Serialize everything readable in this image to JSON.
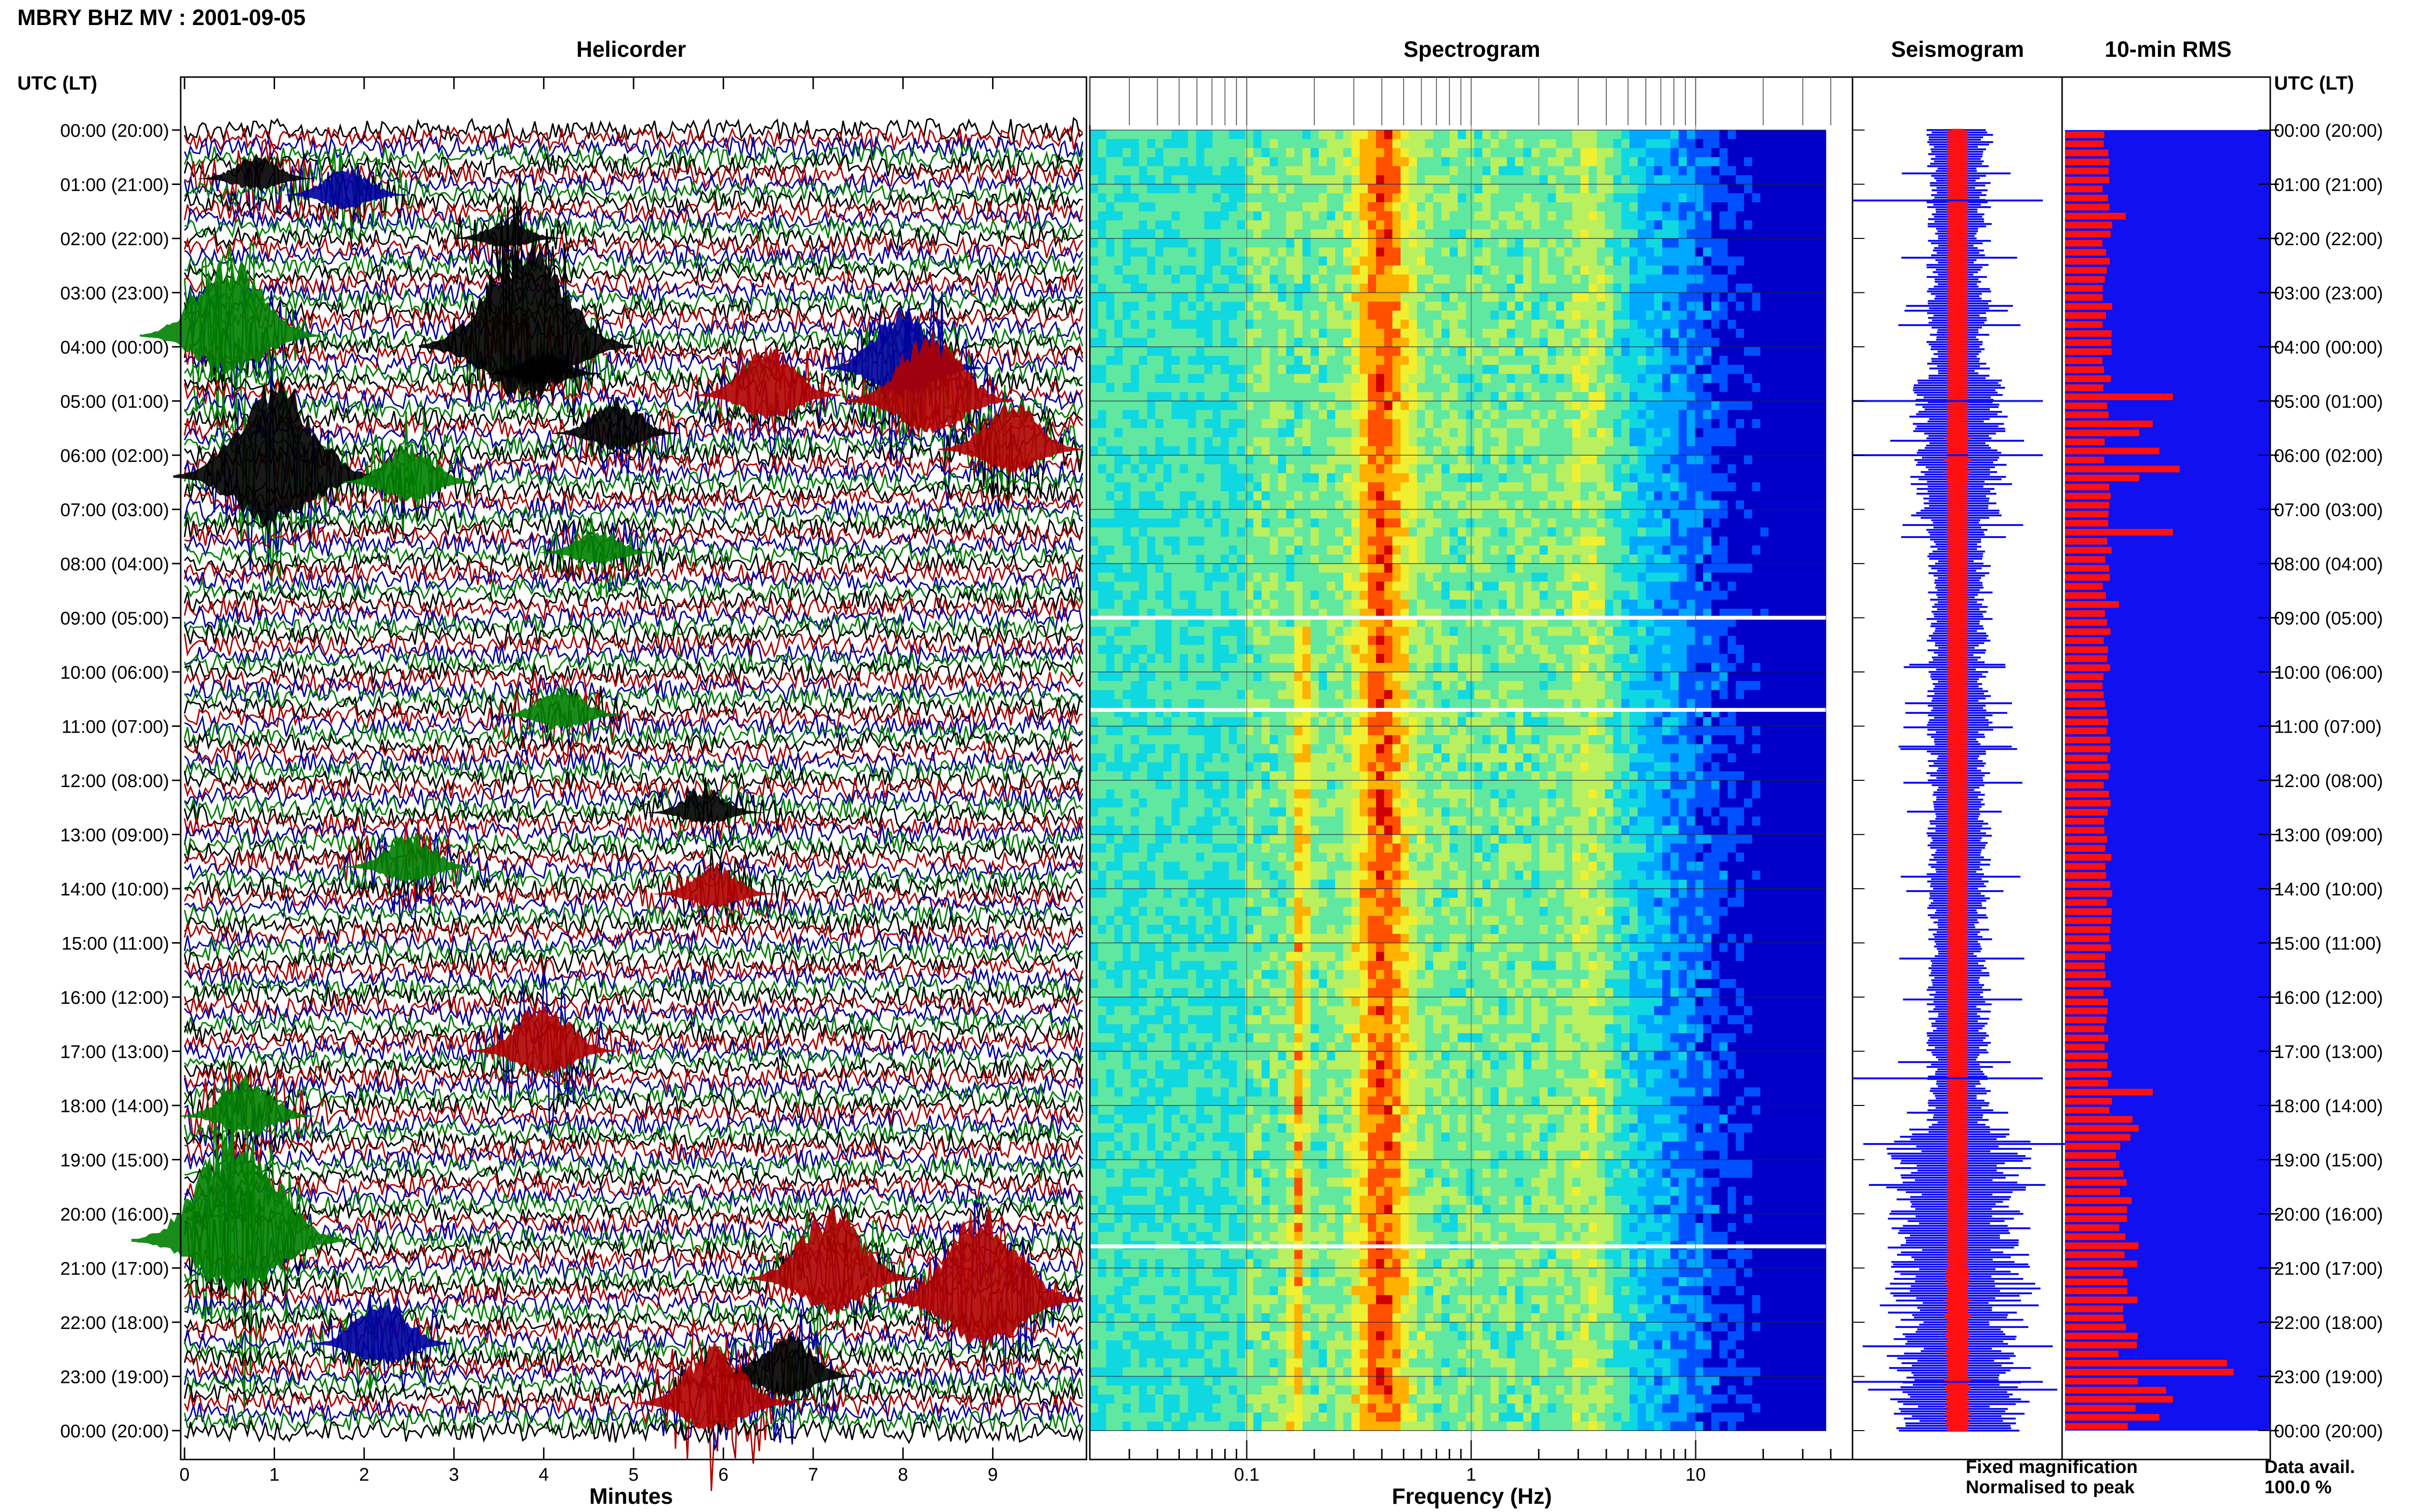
{
  "header": {
    "station_title": "MBRY BHZ MV : 2001-09-05",
    "time_axis_label": "UTC (LT)"
  },
  "panels": {
    "helicorder": "Helicorder",
    "spectrogram": "Spectrogram",
    "seismogram": "Seismogram",
    "rms": "10-min RMS"
  },
  "legend": {
    "fixed": "Fixed magnification",
    "normalised": "Normalised to peak",
    "fixed_color": "#1010f0",
    "normalised_color": "#ff1010"
  },
  "data_availability": {
    "label": "Data avail.",
    "value": "100.0 %"
  },
  "chart_data": [
    {
      "type": "line",
      "title": "Helicorder",
      "xlabel": "Minutes",
      "xlim": [
        0,
        10
      ],
      "x_ticks": [
        "0",
        "1",
        "2",
        "3",
        "4",
        "5",
        "6",
        "7",
        "8",
        "9"
      ],
      "ylabel": "UTC (LT)",
      "row_labels": [
        "00:00 (20:00)",
        "01:00 (21:00)",
        "02:00 (22:00)",
        "03:00 (23:00)",
        "04:00 (00:00)",
        "05:00 (01:00)",
        "06:00 (02:00)",
        "07:00 (03:00)",
        "08:00 (04:00)",
        "09:00 (05:00)",
        "10:00 (06:00)",
        "11:00 (07:00)",
        "12:00 (08:00)",
        "13:00 (09:00)",
        "14:00 (10:00)",
        "15:00 (11:00)",
        "16:00 (12:00)",
        "17:00 (13:00)",
        "18:00 (14:00)",
        "19:00 (15:00)",
        "20:00 (16:00)",
        "21:00 (17:00)",
        "22:00 (18:00)",
        "23:00 (19:00)",
        "00:00 (20:00)"
      ],
      "trace_colors": [
        "#000000",
        "#b00000",
        "#0000a0",
        "#008000"
      ],
      "traces_per_hour": 6,
      "events": [
        {
          "hour": 0.9,
          "minute": 0.8,
          "amp": 0.5,
          "color": "#000000"
        },
        {
          "hour": 1.2,
          "minute": 1.8,
          "amp": 0.6,
          "color": "#0000a0"
        },
        {
          "hour": 2.0,
          "minute": 3.6,
          "amp": 0.4,
          "color": "#000000"
        },
        {
          "hour": 3.8,
          "minute": 0.5,
          "amp": 1.6,
          "color": "#008000"
        },
        {
          "hour": 4.0,
          "minute": 3.8,
          "amp": 2.2,
          "color": "#000000"
        },
        {
          "hour": 4.5,
          "minute": 4.0,
          "amp": 0.5,
          "color": "#000000"
        },
        {
          "hour": 4.4,
          "minute": 8.0,
          "amp": 1.2,
          "color": "#0000a0"
        },
        {
          "hour": 4.9,
          "minute": 6.5,
          "amp": 1.0,
          "color": "#b00000"
        },
        {
          "hour": 5.0,
          "minute": 8.3,
          "amp": 1.4,
          "color": "#b00000"
        },
        {
          "hour": 5.6,
          "minute": 4.8,
          "amp": 0.7,
          "color": "#000000"
        },
        {
          "hour": 5.9,
          "minute": 9.2,
          "amp": 1.0,
          "color": "#b00000"
        },
        {
          "hour": 6.4,
          "minute": 1.0,
          "amp": 2.0,
          "color": "#000000"
        },
        {
          "hour": 6.5,
          "minute": 2.5,
          "amp": 0.8,
          "color": "#008000"
        },
        {
          "hour": 7.8,
          "minute": 4.6,
          "amp": 0.5,
          "color": "#008000"
        },
        {
          "hour": 10.8,
          "minute": 4.2,
          "amp": 0.6,
          "color": "#008000"
        },
        {
          "hour": 12.6,
          "minute": 5.8,
          "amp": 0.5,
          "color": "#000000"
        },
        {
          "hour": 13.6,
          "minute": 2.5,
          "amp": 0.7,
          "color": "#008000"
        },
        {
          "hour": 14.1,
          "minute": 5.9,
          "amp": 0.6,
          "color": "#b00000"
        },
        {
          "hour": 17.0,
          "minute": 4.0,
          "amp": 1.0,
          "color": "#b00000"
        },
        {
          "hour": 18.2,
          "minute": 0.7,
          "amp": 0.8,
          "color": "#008000"
        },
        {
          "hour": 20.5,
          "minute": 0.6,
          "amp": 2.2,
          "color": "#008000"
        },
        {
          "hour": 21.2,
          "minute": 7.2,
          "amp": 1.4,
          "color": "#b00000"
        },
        {
          "hour": 21.6,
          "minute": 8.9,
          "amp": 1.9,
          "color": "#b00000"
        },
        {
          "hour": 22.4,
          "minute": 2.2,
          "amp": 0.9,
          "color": "#0000a0"
        },
        {
          "hour": 23.0,
          "minute": 6.7,
          "amp": 0.9,
          "color": "#000000"
        },
        {
          "hour": 23.5,
          "minute": 5.9,
          "amp": 1.2,
          "color": "#b00000"
        }
      ]
    },
    {
      "type": "heatmap",
      "title": "Spectrogram",
      "xlabel": "Frequency (Hz)",
      "x_scale": "log",
      "xlim": [
        0.02,
        50
      ],
      "x_ticks": [
        0.1,
        1,
        10
      ],
      "x_tick_labels": [
        "0.1",
        "1",
        "10"
      ],
      "y_hours": [
        0,
        24
      ],
      "colormap": [
        "#0000c8",
        "#0050ff",
        "#00a8ff",
        "#10d8e0",
        "#60e8a0",
        "#b8f060",
        "#f0f030",
        "#ffb000",
        "#ff5000",
        "#d00000"
      ],
      "dominant_peaks_hz": [
        0.18,
        0.35,
        0.45,
        3.5
      ],
      "gaps_hours": [
        9.0,
        10.7,
        20.6
      ]
    },
    {
      "type": "area",
      "title": "Seismogram",
      "y_hours": [
        0,
        24
      ],
      "series": [
        {
          "name": "Fixed magnification",
          "color": "#1010f0"
        },
        {
          "name": "Normalised to peak",
          "color": "#ff1010"
        }
      ],
      "spikes_hours": [
        1.3,
        5.0,
        6.0,
        17.5,
        23.1
      ]
    },
    {
      "type": "bar",
      "title": "10-min RMS",
      "orientation": "horizontal",
      "bins_per_hour": 6,
      "hours": 24,
      "fill_color": "#1010f0",
      "bar_color": "#ff1010",
      "spikes": [
        {
          "hour": 1.5,
          "value": 0.9
        },
        {
          "hour": 1.7,
          "value": 0.7
        },
        {
          "hour": 3.1,
          "value": 0.7
        },
        {
          "hour": 4.8,
          "value": 1.6
        },
        {
          "hour": 5.3,
          "value": 1.3
        },
        {
          "hour": 5.5,
          "value": 1.1
        },
        {
          "hour": 5.9,
          "value": 1.4
        },
        {
          "hour": 6.1,
          "value": 1.7
        },
        {
          "hour": 6.4,
          "value": 1.1
        },
        {
          "hour": 7.4,
          "value": 1.6
        },
        {
          "hour": 8.6,
          "value": 0.8
        },
        {
          "hour": 17.6,
          "value": 1.3
        },
        {
          "hour": 22.6,
          "value": 2.4
        },
        {
          "hour": 22.9,
          "value": 2.5
        },
        {
          "hour": 23.2,
          "value": 1.5
        },
        {
          "hour": 23.4,
          "value": 1.6
        },
        {
          "hour": 23.7,
          "value": 1.4
        }
      ]
    }
  ]
}
